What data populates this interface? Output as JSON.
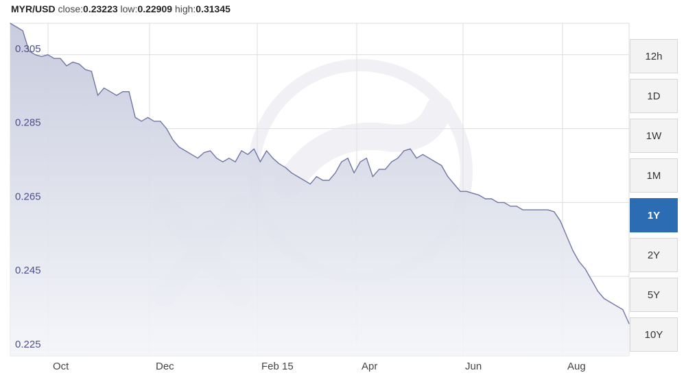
{
  "header": {
    "pair": "MYR/USD",
    "close_label": "close:",
    "close_value": "0.23223",
    "low_label": "low:",
    "low_value": "0.22909",
    "high_label": "high:",
    "high_value": "0.31345"
  },
  "range_buttons": [
    {
      "label": "12h",
      "active": false
    },
    {
      "label": "1D",
      "active": false
    },
    {
      "label": "1W",
      "active": false
    },
    {
      "label": "1M",
      "active": false
    },
    {
      "label": "1Y",
      "active": true
    },
    {
      "label": "2Y",
      "active": false
    },
    {
      "label": "5Y",
      "active": false
    },
    {
      "label": "10Y",
      "active": false
    }
  ],
  "colors": {
    "line": "#6f76a3",
    "fill_top": "#c5c9dc",
    "fill_bottom": "#f4f5f9",
    "grid": "#dcdcdc",
    "y_tick_text": "#4a4f8a",
    "active_button": "#2b6cb3",
    "watermark": "#e6e7ee"
  },
  "chart_data": {
    "type": "area",
    "title": "MYR/USD",
    "xlabel": "",
    "ylabel": "",
    "ylim": [
      0.2235,
      0.3135
    ],
    "y_ticks": [
      "0.305",
      "0.285",
      "0.265",
      "0.245",
      "0.225"
    ],
    "x_ticks": [
      "Oct",
      "Dec",
      "Feb 15",
      "Apr",
      "Jun",
      "Aug"
    ],
    "grid": true,
    "series": [
      {
        "values": [
          0.3135,
          0.3125,
          0.3115,
          0.306,
          0.305,
          0.3045,
          0.305,
          0.304,
          0.304,
          0.302,
          0.303,
          0.3025,
          0.301,
          0.3005,
          0.294,
          0.296,
          0.295,
          0.294,
          0.295,
          0.295,
          0.288,
          0.287,
          0.288,
          0.287,
          0.287,
          0.285,
          0.282,
          0.28,
          0.279,
          0.278,
          0.277,
          0.2785,
          0.279,
          0.277,
          0.276,
          0.277,
          0.276,
          0.279,
          0.278,
          0.2795,
          0.276,
          0.279,
          0.277,
          0.2755,
          0.2745,
          0.273,
          0.272,
          0.271,
          0.27,
          0.272,
          0.271,
          0.271,
          0.273,
          0.276,
          0.277,
          0.273,
          0.276,
          0.277,
          0.272,
          0.274,
          0.274,
          0.276,
          0.277,
          0.279,
          0.2795,
          0.277,
          0.278,
          0.277,
          0.276,
          0.275,
          0.272,
          0.27,
          0.268,
          0.268,
          0.2675,
          0.267,
          0.266,
          0.266,
          0.265,
          0.265,
          0.264,
          0.264,
          0.263,
          0.263,
          0.263,
          0.263,
          0.263,
          0.2625,
          0.26,
          0.256,
          0.252,
          0.249,
          0.247,
          0.244,
          0.241,
          0.239,
          0.238,
          0.237,
          0.236,
          0.2322
        ]
      }
    ]
  },
  "watermark": {
    "icon": "xe-logo-watermark"
  }
}
